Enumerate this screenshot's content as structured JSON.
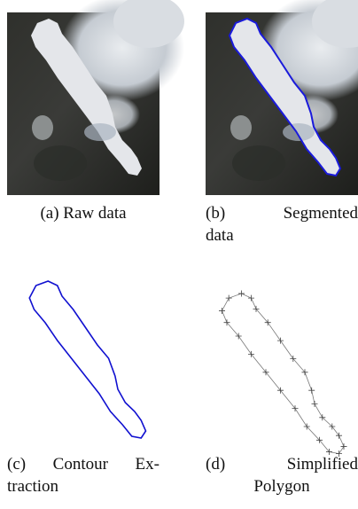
{
  "figure": {
    "panels": [
      {
        "caption_lines": [
          "(a) Raw data"
        ]
      },
      {
        "caption_lines": [
          "(b) Segmented",
          "data"
        ]
      },
      {
        "caption_lines": [
          "(c) Contour Ex-",
          "traction"
        ]
      },
      {
        "caption_lines": [
          "(d) Simplified",
          "Polygon"
        ]
      }
    ]
  }
}
